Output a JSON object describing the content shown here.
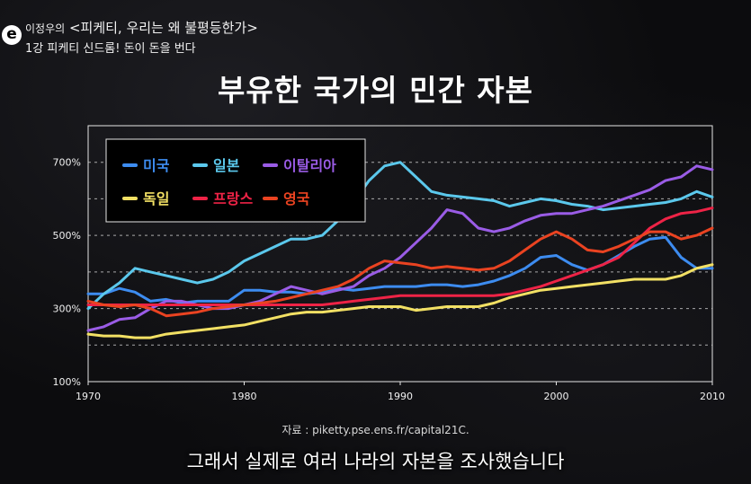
{
  "header": {
    "logo_letter": "e",
    "series_prefix": "이정우의",
    "series_title": "<피케티, 우리는 왜 불평등한가>",
    "episode": "1강 피케티 신드롬! 돈이 돈을 번다"
  },
  "source_note": "자료 : piketty.pse.ens.fr/capital21C.",
  "subtitle": "그래서 실제로 여러 나라의 자본을 조사했습니다",
  "chart_data": {
    "type": "line",
    "title": "부유한 국가의 민간 자본",
    "xlabel": "",
    "ylabel": "",
    "xlim": [
      1970,
      2010
    ],
    "ylim": [
      100,
      800
    ],
    "x_ticks": [
      1970,
      1980,
      1990,
      2000,
      2010
    ],
    "x_tick_labels": [
      "1970",
      "1980",
      "1990",
      "2000",
      "2010"
    ],
    "y_ticks": [
      100,
      300,
      500,
      700
    ],
    "y_tick_labels": [
      "100%",
      "300%",
      "500%",
      "700%"
    ],
    "legend_position": "top-left",
    "x": [
      1970,
      1971,
      1972,
      1973,
      1974,
      1975,
      1976,
      1977,
      1978,
      1979,
      1980,
      1981,
      1982,
      1983,
      1984,
      1985,
      1986,
      1987,
      1988,
      1989,
      1990,
      1991,
      1992,
      1993,
      1994,
      1995,
      1996,
      1997,
      1998,
      1999,
      2000,
      2001,
      2002,
      2003,
      2004,
      2005,
      2006,
      2007,
      2008,
      2009,
      2010
    ],
    "series": [
      {
        "name": "미국",
        "color": "#3d8cf0",
        "values": [
          340,
          340,
          355,
          345,
          320,
          325,
          315,
          320,
          320,
          320,
          350,
          350,
          345,
          345,
          340,
          345,
          355,
          350,
          355,
          360,
          360,
          360,
          365,
          365,
          360,
          365,
          375,
          390,
          410,
          440,
          445,
          420,
          405,
          420,
          445,
          470,
          490,
          495,
          440,
          410,
          410
        ]
      },
      {
        "name": "일본",
        "color": "#5bc8ec",
        "values": [
          300,
          340,
          370,
          410,
          400,
          390,
          380,
          370,
          380,
          400,
          430,
          450,
          470,
          490,
          490,
          500,
          540,
          590,
          650,
          690,
          700,
          660,
          620,
          610,
          605,
          600,
          595,
          580,
          590,
          600,
          595,
          585,
          580,
          570,
          575,
          580,
          585,
          590,
          600,
          620,
          605
        ]
      },
      {
        "name": "이탈리아",
        "color": "#9a5ce6",
        "values": [
          240,
          250,
          270,
          275,
          300,
          320,
          320,
          310,
          300,
          300,
          310,
          320,
          340,
          360,
          350,
          340,
          350,
          360,
          390,
          410,
          440,
          480,
          520,
          570,
          560,
          520,
          510,
          520,
          540,
          555,
          560,
          560,
          570,
          580,
          595,
          610,
          625,
          650,
          660,
          690,
          680
        ]
      },
      {
        "name": "독일",
        "color": "#f2e064",
        "values": [
          230,
          225,
          225,
          220,
          220,
          230,
          235,
          240,
          245,
          250,
          255,
          265,
          275,
          285,
          290,
          290,
          295,
          300,
          305,
          305,
          305,
          295,
          300,
          305,
          305,
          305,
          315,
          330,
          340,
          350,
          355,
          360,
          365,
          370,
          375,
          380,
          380,
          380,
          390,
          410,
          420
        ]
      },
      {
        "name": "프랑스",
        "color": "#ee2346",
        "values": [
          310,
          310,
          310,
          310,
          310,
          310,
          310,
          310,
          310,
          310,
          310,
          310,
          310,
          310,
          310,
          310,
          315,
          320,
          325,
          330,
          335,
          335,
          335,
          335,
          335,
          335,
          335,
          340,
          350,
          360,
          375,
          390,
          405,
          420,
          440,
          480,
          520,
          545,
          560,
          565,
          575
        ]
      },
      {
        "name": "영국",
        "color": "#ea4321",
        "values": [
          320,
          310,
          305,
          310,
          300,
          280,
          285,
          290,
          300,
          305,
          310,
          315,
          320,
          330,
          340,
          350,
          360,
          380,
          410,
          430,
          425,
          420,
          410,
          415,
          410,
          405,
          410,
          430,
          460,
          490,
          510,
          490,
          460,
          455,
          470,
          490,
          510,
          510,
          490,
          500,
          520
        ]
      }
    ]
  }
}
